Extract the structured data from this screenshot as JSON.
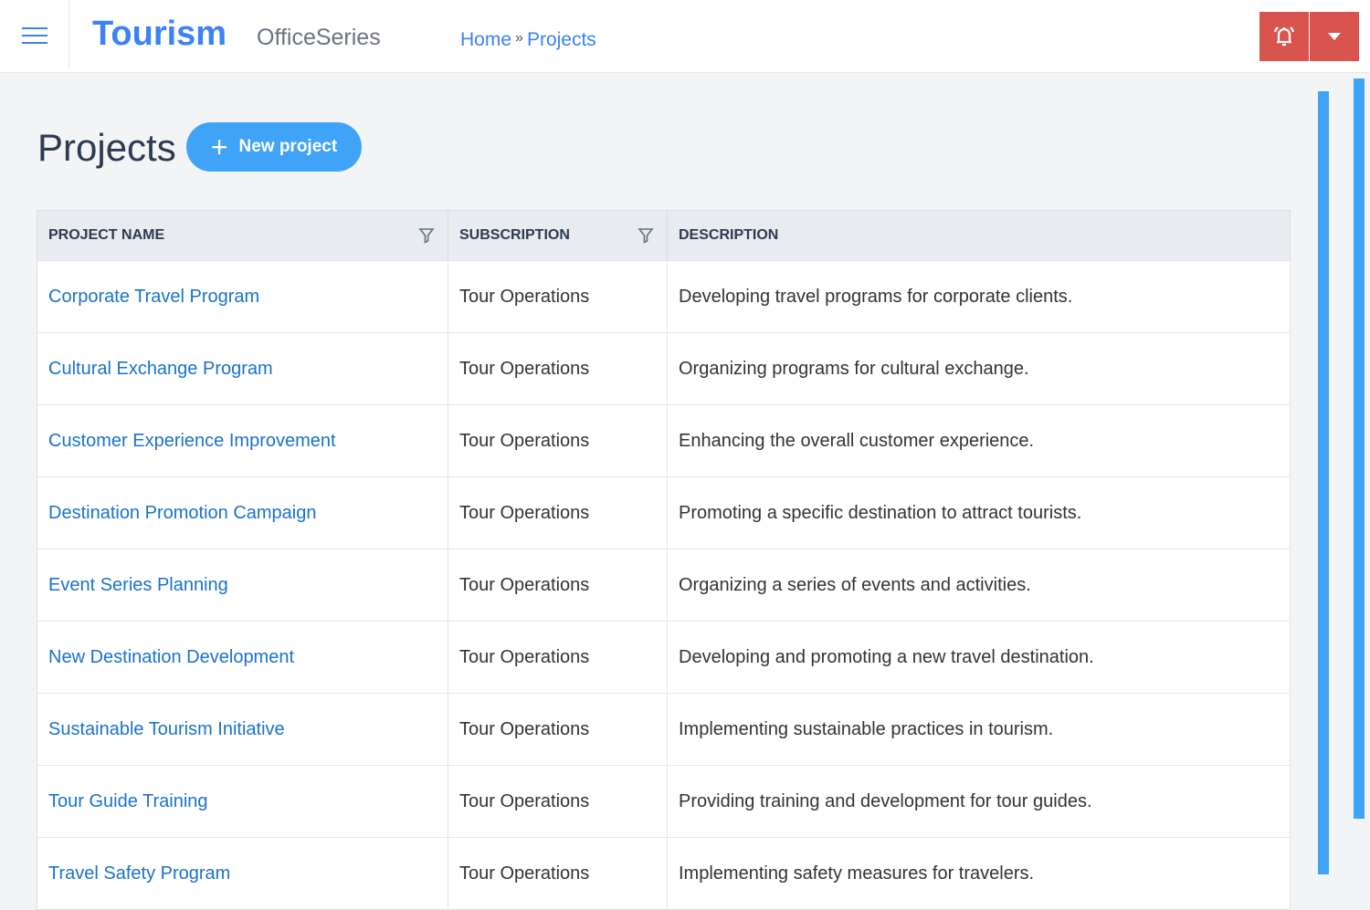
{
  "header": {
    "brand": "Tourism",
    "product": "OfficeSeries",
    "breadcrumb": {
      "home": "Home",
      "separator": "»",
      "current": "Projects"
    },
    "accent": "#3b82f6",
    "alert_color": "#d9534f"
  },
  "page": {
    "title": "Projects",
    "new_button": "New project"
  },
  "table": {
    "columns": [
      "PROJECT NAME",
      "SUBSCRIPTION",
      "DESCRIPTION"
    ],
    "rows": [
      {
        "name": "Corporate Travel Program",
        "subscription": "Tour Operations",
        "description": "Developing travel programs for corporate clients."
      },
      {
        "name": "Cultural Exchange Program",
        "subscription": "Tour Operations",
        "description": "Organizing programs for cultural exchange."
      },
      {
        "name": "Customer Experience Improvement",
        "subscription": "Tour Operations",
        "description": "Enhancing the overall customer experience."
      },
      {
        "name": "Destination Promotion Campaign",
        "subscription": "Tour Operations",
        "description": "Promoting a specific destination to attract tourists."
      },
      {
        "name": "Event Series Planning",
        "subscription": "Tour Operations",
        "description": "Organizing a series of events and activities."
      },
      {
        "name": "New Destination Development",
        "subscription": "Tour Operations",
        "description": "Developing and promoting a new travel destination."
      },
      {
        "name": "Sustainable Tourism Initiative",
        "subscription": "Tour Operations",
        "description": "Implementing sustainable practices in tourism."
      },
      {
        "name": "Tour Guide Training",
        "subscription": "Tour Operations",
        "description": "Providing training and development for tour guides."
      },
      {
        "name": "Travel Safety Program",
        "subscription": "Tour Operations",
        "description": "Implementing safety measures for travelers."
      }
    ]
  }
}
